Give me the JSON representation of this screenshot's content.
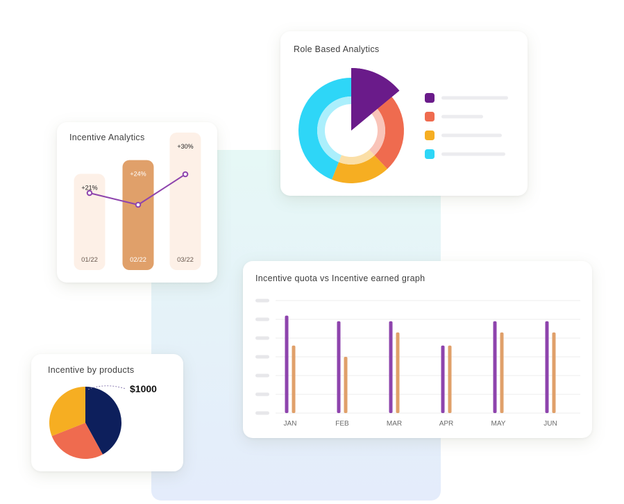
{
  "colors": {
    "purple": "#8e44ad",
    "orange": "#e0a06a",
    "bar_light": "#fdf0e7",
    "bar_dark": "#e0a06a",
    "donut_purple": "#6a1b8a",
    "donut_red": "#ef6b4f",
    "donut_yellow": "#f6ae22",
    "donut_cyan": "#2ed6f7",
    "pie_navy": "#0d1f5c",
    "pie_red": "#ef6b4f",
    "pie_yellow": "#f6ae22"
  },
  "incentive_analytics": {
    "title": "Incentive Analytics",
    "chart_data": {
      "type": "bar",
      "categories": [
        "01/22",
        "02/22",
        "03/22"
      ],
      "values": [
        21,
        24,
        30
      ],
      "data_labels": [
        "+21%",
        "+24%",
        "+30%"
      ],
      "highlighted_index": 1
    }
  },
  "role_based": {
    "title": "Role Based Analytics",
    "chart_data": {
      "type": "pie",
      "style": "donut",
      "slices": [
        {
          "color": "#6a1b8a",
          "value": 14,
          "exploded": true
        },
        {
          "color": "#ef6b4f",
          "value": 24
        },
        {
          "color": "#f6ae22",
          "value": 18
        },
        {
          "color": "#2ed6f7",
          "value": 44
        }
      ],
      "legend_placement": "right"
    }
  },
  "quota_graph": {
    "title": "Incentive quota vs Incentive earned graph",
    "chart_data": {
      "type": "bar",
      "categories": [
        "JAN",
        "FEB",
        "MAR",
        "APR",
        "MAY",
        "JUN"
      ],
      "series": [
        {
          "color": "#8e44ad",
          "values": [
            5.2,
            4.9,
            4.9,
            3.6,
            4.9,
            4.9
          ]
        },
        {
          "color": "#e0a06a",
          "values": [
            3.6,
            3.0,
            4.3,
            3.6,
            4.3,
            4.3
          ]
        }
      ],
      "ylim": [
        0,
        6
      ],
      "grid": true
    }
  },
  "incentive_products": {
    "title": "Incentive by products",
    "callout": "$1000",
    "chart_data": {
      "type": "pie",
      "slices": [
        {
          "color": "#0d1f5c",
          "value": 42
        },
        {
          "color": "#ef6b4f",
          "value": 27
        },
        {
          "color": "#f6ae22",
          "value": 31
        }
      ]
    }
  }
}
